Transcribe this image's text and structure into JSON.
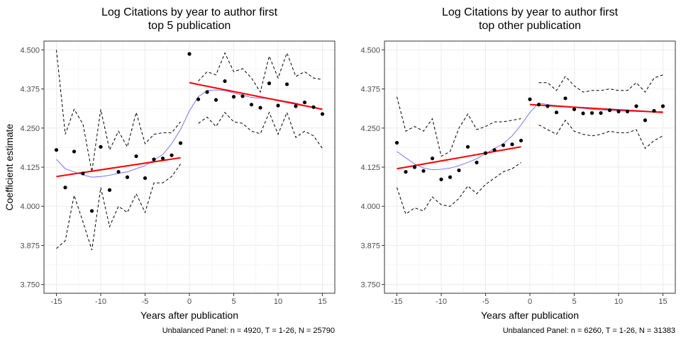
{
  "chart_data": [
    {
      "type": "scatter",
      "title": "Log Citations by year to author first\ntop 5 publication",
      "xlabel": "Years after publication",
      "ylabel": "Coefficient estimate",
      "caption": "Unbalanced Panel: n = 4920, T = 1-26, N = 25790",
      "xlim": [
        -16.4,
        16.4
      ],
      "ylim": [
        3.722,
        4.528
      ],
      "xticks": [
        -15,
        -10,
        -5,
        0,
        5,
        10,
        15
      ],
      "xtick_labels": [
        "-15",
        "-10",
        "-5",
        "0",
        "5",
        "10",
        "15"
      ],
      "yticks": [
        3.75,
        3.875,
        4.0,
        4.125,
        4.25,
        4.375,
        4.5
      ],
      "ytick_labels": [
        "3.750",
        "3.875",
        "4.000",
        "4.125",
        "4.250",
        "4.375",
        "4.500"
      ],
      "grid": true,
      "points": {
        "x": [
          -15,
          -14,
          -13,
          -12,
          -11,
          -10,
          -9,
          -8,
          -7,
          -6,
          -5,
          -4,
          -3,
          -2,
          -1,
          0,
          1,
          2,
          3,
          4,
          5,
          6,
          7,
          8,
          9,
          10,
          11,
          12,
          13,
          14,
          15
        ],
        "y": [
          4.18,
          4.06,
          4.175,
          4.105,
          3.985,
          4.19,
          4.052,
          4.11,
          4.093,
          4.16,
          4.09,
          4.15,
          4.153,
          4.163,
          4.202,
          4.487,
          4.342,
          4.365,
          4.34,
          4.4,
          4.35,
          4.352,
          4.325,
          4.315,
          4.393,
          4.322,
          4.39,
          4.32,
          4.332,
          4.317,
          4.295
        ]
      },
      "ci_upper": {
        "x": [
          -15,
          -14,
          -13,
          -12,
          -11,
          -10,
          -9,
          -8,
          -7,
          -6,
          -5,
          -4,
          -3,
          -2,
          -1
        ],
        "y": [
          4.5,
          4.23,
          4.31,
          4.262,
          4.11,
          4.31,
          4.18,
          4.24,
          4.19,
          4.3,
          4.2,
          4.23,
          4.235,
          4.235,
          4.27
        ]
      },
      "ci_lower": {
        "x": [
          -15,
          -14,
          -13,
          -12,
          -11,
          -10,
          -9,
          -8,
          -7,
          -6,
          -5,
          -4,
          -3,
          -2,
          -1
        ],
        "y": [
          3.865,
          3.89,
          4.035,
          3.95,
          3.86,
          4.06,
          3.935,
          4.0,
          3.98,
          4.04,
          3.98,
          4.075,
          4.075,
          4.095,
          4.135
        ]
      },
      "ci_upper_post": {
        "x": [
          1,
          2,
          3,
          4,
          5,
          6,
          7,
          8,
          9,
          10,
          11,
          12,
          13,
          14,
          15
        ],
        "y": [
          4.4,
          4.43,
          4.42,
          4.49,
          4.43,
          4.44,
          4.41,
          4.365,
          4.48,
          4.41,
          4.49,
          4.415,
          4.43,
          4.41,
          4.405
        ]
      },
      "ci_lower_post": {
        "x": [
          1,
          2,
          3,
          4,
          5,
          6,
          7,
          8,
          9,
          10,
          11,
          12,
          13,
          14,
          15
        ],
        "y": [
          4.265,
          4.285,
          4.255,
          4.3,
          4.27,
          4.265,
          4.24,
          4.232,
          4.3,
          4.23,
          4.3,
          4.22,
          4.24,
          4.225,
          4.185
        ]
      },
      "fit_pre": {
        "x": [
          -15,
          -1
        ],
        "y": [
          4.095,
          4.155
        ],
        "color": "#ff0000"
      },
      "fit_post": {
        "x": [
          0,
          15
        ],
        "y": [
          4.395,
          4.31
        ],
        "color": "#ff0000"
      },
      "smooth": {
        "x": [
          -15,
          -14,
          -13,
          -12,
          -11,
          -10,
          -9,
          -8,
          -7,
          -6,
          -5,
          -4,
          -3,
          -2,
          -1,
          0,
          1,
          2,
          3,
          4,
          5,
          6,
          7,
          8,
          9,
          10,
          11,
          12,
          13,
          14,
          15
        ],
        "y": [
          4.15,
          4.12,
          4.11,
          4.1,
          4.093,
          4.095,
          4.099,
          4.105,
          4.11,
          4.12,
          4.13,
          4.148,
          4.165,
          4.2,
          4.245,
          4.305,
          4.35,
          4.37,
          4.372,
          4.37,
          4.362,
          4.355,
          4.348,
          4.345,
          4.345,
          4.34,
          4.335,
          4.33,
          4.322,
          4.315,
          4.31
        ],
        "color": "#6b6bff"
      }
    },
    {
      "type": "scatter",
      "title": "Log Citations by year to author first\ntop other publication",
      "xlabel": "Years after publication",
      "ylabel": "",
      "caption": "Unbalanced Panel: n = 6260, T = 1-26, N = 31383",
      "xlim": [
        -16.4,
        16.4
      ],
      "ylim": [
        3.722,
        4.528
      ],
      "xticks": [
        -15,
        -10,
        -5,
        0,
        5,
        10,
        15
      ],
      "xtick_labels": [
        "-15",
        "-10",
        "-5",
        "0",
        "5",
        "10",
        "15"
      ],
      "yticks": [
        3.75,
        3.875,
        4.0,
        4.125,
        4.25,
        4.375,
        4.5
      ],
      "ytick_labels": [
        "3.750",
        "3.875",
        "4.000",
        "4.125",
        "4.250",
        "4.375",
        "4.500"
      ],
      "grid": true,
      "points": {
        "x": [
          -15,
          -14,
          -13,
          -12,
          -11,
          -10,
          -9,
          -8,
          -7,
          -6,
          -5,
          -4,
          -3,
          -2,
          -1,
          0,
          1,
          2,
          3,
          4,
          5,
          6,
          7,
          8,
          9,
          10,
          11,
          12,
          13,
          14,
          15
        ],
        "y": [
          4.203,
          4.11,
          4.125,
          4.113,
          4.153,
          4.086,
          4.093,
          4.115,
          4.19,
          4.14,
          4.17,
          4.18,
          4.195,
          4.198,
          4.21,
          4.342,
          4.325,
          4.32,
          4.3,
          4.345,
          4.31,
          4.297,
          4.298,
          4.298,
          4.307,
          4.303,
          4.303,
          4.32,
          4.275,
          4.305,
          4.32
        ]
      },
      "ci_upper": {
        "x": [
          -15,
          -14,
          -13,
          -12,
          -11,
          -10,
          -9,
          -8,
          -7,
          -6,
          -5,
          -4,
          -3,
          -2,
          -1
        ],
        "y": [
          4.35,
          4.24,
          4.255,
          4.24,
          4.28,
          4.16,
          4.175,
          4.25,
          4.295,
          4.245,
          4.255,
          4.27,
          4.27,
          4.275,
          4.28
        ]
      },
      "ci_lower": {
        "x": [
          -15,
          -14,
          -13,
          -12,
          -11,
          -10,
          -9,
          -8,
          -7,
          -6,
          -5,
          -4,
          -3,
          -2,
          -1
        ],
        "y": [
          4.06,
          3.975,
          3.995,
          3.985,
          4.03,
          4.005,
          4.0,
          4.025,
          4.065,
          4.04,
          4.07,
          4.09,
          4.11,
          4.12,
          4.14
        ]
      },
      "ci_upper_post": {
        "x": [
          1,
          2,
          3,
          4,
          5,
          6,
          7,
          8,
          9,
          10,
          11,
          12,
          13,
          14,
          15
        ],
        "y": [
          4.395,
          4.395,
          4.37,
          4.415,
          4.385,
          4.365,
          4.37,
          4.37,
          4.375,
          4.37,
          4.37,
          4.395,
          4.365,
          4.41,
          4.42
        ]
      },
      "ci_lower_post": {
        "x": [
          1,
          2,
          3,
          4,
          5,
          6,
          7,
          8,
          9,
          10,
          11,
          12,
          13,
          14,
          15
        ],
        "y": [
          4.26,
          4.245,
          4.23,
          4.275,
          4.24,
          4.23,
          4.225,
          4.23,
          4.24,
          4.235,
          4.235,
          4.245,
          4.185,
          4.21,
          4.225
        ]
      },
      "fit_pre": {
        "x": [
          -15,
          -1
        ],
        "y": [
          4.12,
          4.19
        ],
        "color": "#ff0000"
      },
      "fit_post": {
        "x": [
          0,
          15
        ],
        "y": [
          4.325,
          4.3
        ],
        "color": "#ff0000"
      },
      "smooth": {
        "x": [
          -15,
          -14,
          -13,
          -12,
          -11,
          -10,
          -9,
          -8,
          -7,
          -6,
          -5,
          -4,
          -3,
          -2,
          -1,
          0,
          1,
          2,
          3,
          4,
          5,
          6,
          7,
          8,
          9,
          10,
          11,
          12,
          13,
          14,
          15
        ],
        "y": [
          4.175,
          4.155,
          4.135,
          4.122,
          4.117,
          4.118,
          4.122,
          4.13,
          4.14,
          4.152,
          4.168,
          4.185,
          4.2,
          4.225,
          4.26,
          4.3,
          4.33,
          4.325,
          4.322,
          4.32,
          4.317,
          4.313,
          4.31,
          4.308,
          4.307,
          4.305,
          4.304,
          4.303,
          4.302,
          4.302,
          4.303
        ],
        "color": "#6b6bff"
      }
    }
  ]
}
